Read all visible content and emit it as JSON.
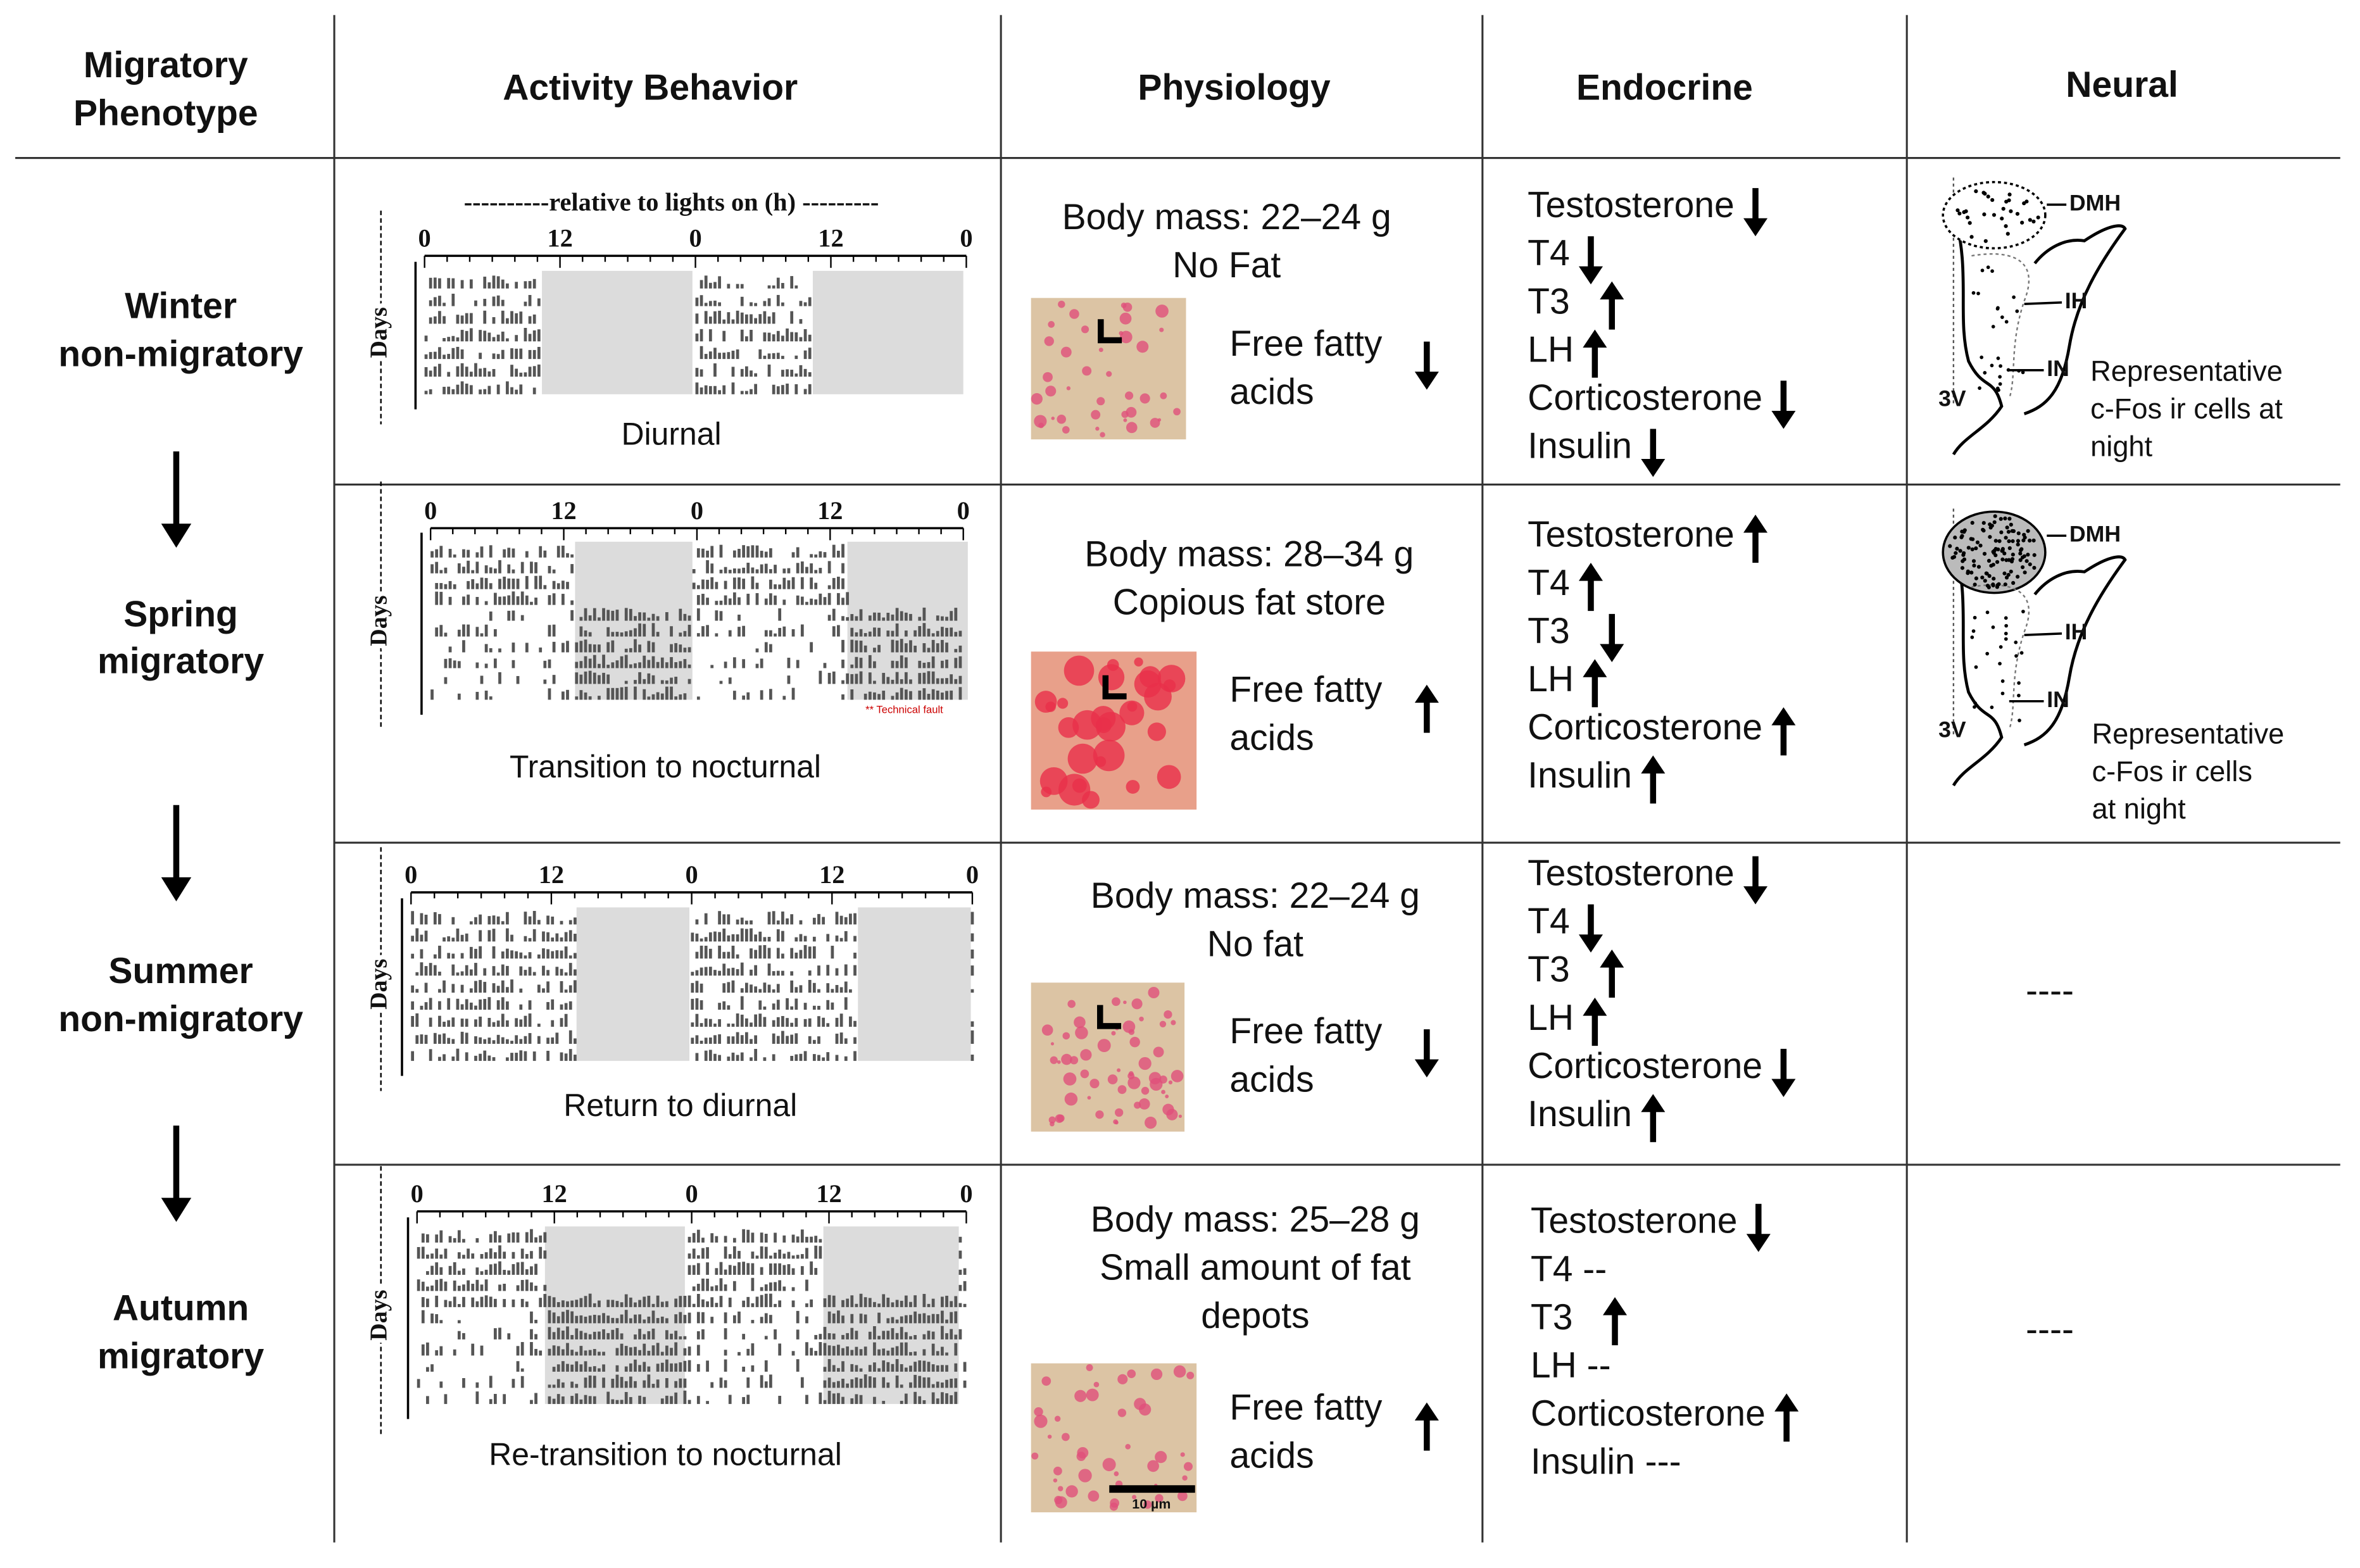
{
  "header": {
    "phenotype": [
      "Migratory",
      "Phenotype"
    ],
    "activity": "Activity Behavior",
    "physiology": "Physiology",
    "endocrine": "Endocrine",
    "neural": "Neural"
  },
  "rows": [
    {
      "phenotype": [
        "Winter",
        "non-migratory"
      ],
      "activity": {
        "axis_label": "----------relative to lights on (h) ---------",
        "ticks": [
          "0",
          "12",
          "0",
          "12",
          "0"
        ],
        "y_label": "Days",
        "caption": "Diurnal"
      },
      "physiology": {
        "body_mass": "Body mass: 22–24 g",
        "fat": [
          "No Fat"
        ],
        "ffa": [
          "Free fatty",
          "acids"
        ],
        "ffa_arrow": "down"
      },
      "endocrine": [
        {
          "name": "Testosterone",
          "arrow": "down"
        },
        {
          "name": "T4",
          "arrow": "down"
        },
        {
          "name": "T3",
          "arrow": "up"
        },
        {
          "name": "LH",
          "arrow": "up"
        },
        {
          "name": "Corticosterone",
          "arrow": "down"
        },
        {
          "name": "Insulin",
          "arrow": "down"
        }
      ],
      "neural": {
        "labels": [
          "DMH",
          "IH",
          "IN",
          "3V"
        ],
        "caption": [
          "Representative",
          "c-Fos ir cells at",
          "night"
        ]
      }
    },
    {
      "phenotype": [
        "Spring",
        "migratory"
      ],
      "activity": {
        "ticks": [
          "0",
          "12",
          "0",
          "12",
          "0"
        ],
        "y_label": "Days",
        "caption": "Transition to nocturnal",
        "note": "** Technical fault"
      },
      "physiology": {
        "body_mass": "Body mass: 28–34 g",
        "fat": [
          "Copious fat store"
        ],
        "ffa": [
          "Free fatty",
          "acids"
        ],
        "ffa_arrow": "up"
      },
      "endocrine": [
        {
          "name": "Testosterone",
          "arrow": "up"
        },
        {
          "name": "T4",
          "arrow": "up"
        },
        {
          "name": "T3",
          "arrow": "down"
        },
        {
          "name": "LH",
          "arrow": "up"
        },
        {
          "name": "Corticosterone",
          "arrow": "up"
        },
        {
          "name": "Insulin",
          "arrow": "up"
        }
      ],
      "neural": {
        "labels": [
          "DMH",
          "IH",
          "IN",
          "3V"
        ],
        "caption": [
          "Representative",
          "c-Fos ir cells",
          "at night"
        ]
      }
    },
    {
      "phenotype": [
        "Summer",
        "non-migratory"
      ],
      "activity": {
        "ticks": [
          "0",
          "12",
          "0",
          "12",
          "0"
        ],
        "y_label": "Days",
        "caption": "Return to diurnal"
      },
      "physiology": {
        "body_mass": "Body mass: 22–24 g",
        "fat": [
          "No fat"
        ],
        "ffa": [
          "Free fatty",
          "acids"
        ],
        "ffa_arrow": "down"
      },
      "endocrine": [
        {
          "name": "Testosterone",
          "arrow": "down"
        },
        {
          "name": "T4",
          "arrow": "down"
        },
        {
          "name": "T3",
          "arrow": "up"
        },
        {
          "name": "LH",
          "arrow": "up"
        },
        {
          "name": "Corticosterone",
          "arrow": "down"
        },
        {
          "name": "Insulin",
          "arrow": "up"
        }
      ],
      "neural": {
        "text": "----"
      }
    },
    {
      "phenotype": [
        "Autumn",
        "migratory"
      ],
      "activity": {
        "ticks": [
          "0",
          "12",
          "0",
          "12",
          "0"
        ],
        "y_label": "Days",
        "caption": "Re-transition to nocturnal"
      },
      "physiology": {
        "body_mass": "Body mass: 25–28 g",
        "fat": [
          "Small amount of fat",
          "depots"
        ],
        "ffa": [
          "Free fatty",
          "acids"
        ],
        "ffa_arrow": "up",
        "scale": "10 µm"
      },
      "endocrine": [
        {
          "name": "Testosterone",
          "arrow": "down"
        },
        {
          "name": "T4  --"
        },
        {
          "name": "T3",
          "arrow": "up"
        },
        {
          "name": "LH --"
        },
        {
          "name": "Corticosterone",
          "arrow": "up"
        },
        {
          "name": "Insulin ---"
        }
      ],
      "neural": {
        "text": "----"
      }
    }
  ]
}
